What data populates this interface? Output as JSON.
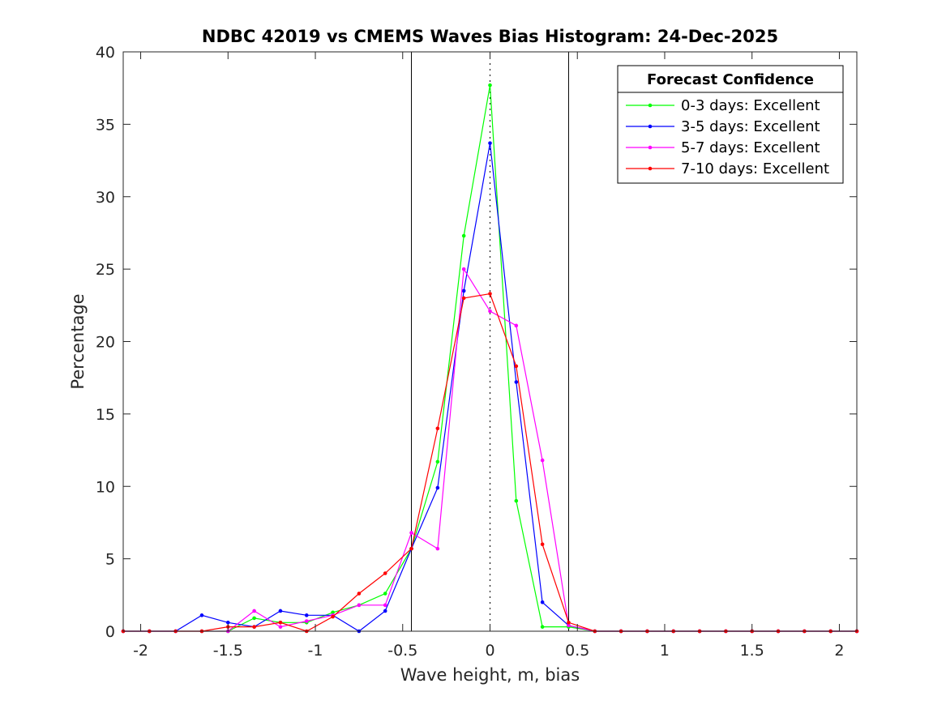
{
  "chart_data": {
    "type": "line",
    "title": "NDBC 42019 vs CMEMS Waves Bias Histogram: 24-Dec-2025",
    "xlabel": "Wave height, m, bias",
    "ylabel": "Percentage",
    "xlim": [
      -2.1,
      2.1
    ],
    "ylim": [
      0,
      40
    ],
    "xticks": [
      -2,
      -1.5,
      -1,
      -0.5,
      0,
      0.5,
      1,
      1.5,
      2
    ],
    "xtick_labels": [
      "-2",
      "-1.5",
      "-1",
      "-0.5",
      "0",
      "0.5",
      "1",
      "1.5",
      "2"
    ],
    "yticks": [
      0,
      5,
      10,
      15,
      20,
      25,
      30,
      35,
      40
    ],
    "ytick_labels": [
      "0",
      "5",
      "10",
      "15",
      "20",
      "25",
      "30",
      "35",
      "40"
    ],
    "reference_lines": {
      "solid_x": [
        -0.45,
        0.45
      ],
      "dotted_x": [
        0
      ]
    },
    "legend_title": "Forecast Confidence",
    "legend_location": "top-right",
    "x": [
      -2.1,
      -1.95,
      -1.8,
      -1.65,
      -1.5,
      -1.35,
      -1.2,
      -1.05,
      -0.9,
      -0.75,
      -0.6,
      -0.45,
      -0.3,
      -0.15,
      0,
      0.15,
      0.3,
      0.45,
      0.6,
      0.75,
      0.9,
      1.05,
      1.2,
      1.35,
      1.5,
      1.65,
      1.8,
      1.95,
      2.1
    ],
    "series": [
      {
        "name": "0-3 days: Excellent",
        "color": "#00ff00",
        "values": [
          0,
          0,
          0,
          0,
          0,
          0.9,
          0.6,
          0.6,
          1.3,
          1.8,
          2.6,
          5.7,
          11.7,
          27.3,
          37.7,
          9.0,
          0.3,
          0.3,
          0,
          0,
          0,
          0,
          0,
          0,
          0,
          0,
          0,
          0,
          0
        ]
      },
      {
        "name": "3-5 days: Excellent",
        "color": "#0000ff",
        "values": [
          0,
          0,
          0,
          1.1,
          0.6,
          0.3,
          1.4,
          1.1,
          1.1,
          0,
          1.4,
          5.7,
          9.9,
          23.5,
          33.7,
          17.2,
          2.0,
          0.4,
          0,
          0,
          0,
          0,
          0,
          0,
          0,
          0,
          0,
          0,
          0
        ]
      },
      {
        "name": "5-7 days: Excellent",
        "color": "#ff00ff",
        "values": [
          0,
          0,
          0,
          0,
          0,
          1.4,
          0.3,
          0.7,
          1.1,
          1.8,
          1.8,
          6.8,
          5.7,
          25.0,
          22.1,
          21.1,
          11.8,
          0.4,
          0,
          0,
          0,
          0,
          0,
          0,
          0,
          0,
          0,
          0,
          0
        ]
      },
      {
        "name": "7-10 days: Excellent",
        "color": "#ff0000",
        "values": [
          0,
          0,
          0,
          0,
          0.3,
          0.3,
          0.6,
          0,
          1.0,
          2.6,
          4.0,
          5.7,
          14.0,
          23.0,
          23.3,
          18.3,
          6.0,
          0.6,
          0,
          0,
          0,
          0,
          0,
          0,
          0,
          0,
          0,
          0,
          0
        ]
      }
    ]
  }
}
